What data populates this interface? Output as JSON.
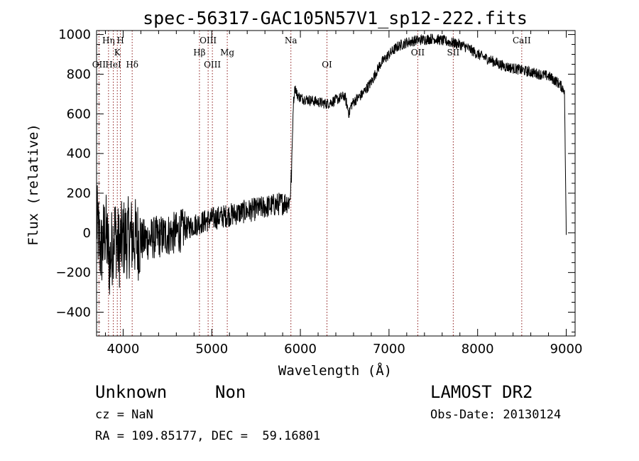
{
  "chart_data": {
    "type": "line",
    "title": "spec-56317-GAC105N57V1_sp12-222.fits",
    "xlabel": "Wavelength (Å)",
    "ylabel": "Flux (relative)",
    "xlim": [
      3700,
      9100
    ],
    "ylim": [
      -520,
      1020
    ],
    "xticks": [
      4000,
      5000,
      6000,
      7000,
      8000,
      9000
    ],
    "yticks": [
      -400,
      -200,
      0,
      200,
      400,
      600,
      800,
      1000
    ],
    "grid": false,
    "series": [
      {
        "x": [
          3700,
          3750,
          3800,
          3850,
          3900,
          3950,
          4000,
          4100,
          4200,
          4300,
          4400,
          4500,
          4600,
          4700,
          4800,
          4900,
          5000,
          5100,
          5200,
          5300,
          5400,
          5500,
          5600,
          5700,
          5800,
          5880,
          5900,
          5920,
          5940,
          5960,
          6000,
          6100,
          6200,
          6300,
          6400,
          6500,
          6550,
          6570,
          6600,
          6700,
          6800,
          6900,
          7000,
          7100,
          7200,
          7300,
          7400,
          7500,
          7600,
          7700,
          7800,
          7900,
          8000,
          8100,
          8200,
          8300,
          8400,
          8500,
          8600,
          8700,
          8800,
          8900,
          8980,
          9000
        ],
        "y": [
          60,
          -100,
          20,
          -150,
          10,
          -80,
          -30,
          -20,
          -40,
          -30,
          -20,
          -10,
          0,
          20,
          40,
          55,
          70,
          80,
          90,
          100,
          110,
          120,
          130,
          140,
          150,
          160,
          300,
          650,
          740,
          700,
          680,
          670,
          660,
          650,
          670,
          690,
          600,
          640,
          660,
          700,
          760,
          850,
          900,
          940,
          960,
          970,
          975,
          980,
          970,
          960,
          950,
          930,
          900,
          880,
          860,
          840,
          830,
          820,
          810,
          800,
          790,
          760,
          720,
          0
        ]
      }
    ],
    "lines": [
      {
        "name": "OII",
        "x": 3727,
        "row": 3
      },
      {
        "name": "Hη",
        "x": 3835,
        "row": 1
      },
      {
        "name": "HeI",
        "x": 3889,
        "row": 3
      },
      {
        "name": "K",
        "x": 3934,
        "row": 2
      },
      {
        "name": "H",
        "x": 3969,
        "row": 1
      },
      {
        "name": "Hδ",
        "x": 4102,
        "row": 3
      },
      {
        "name": "Hβ",
        "x": 4861,
        "row": 2
      },
      {
        "name": "OIII",
        "x": 4959,
        "row": 1
      },
      {
        "name": "OIII",
        "x": 5007,
        "row": 3
      },
      {
        "name": "Mg",
        "x": 5175,
        "row": 2
      },
      {
        "name": "Na",
        "x": 5893,
        "row": 1
      },
      {
        "name": "OI",
        "x": 6300,
        "row": 3
      },
      {
        "name": "OII",
        "x": 7325,
        "row": 2
      },
      {
        "name": "SII",
        "x": 7725,
        "row": 2
      },
      {
        "name": "CaII",
        "x": 8498,
        "row": 1
      }
    ]
  },
  "info": {
    "class": "Unknown",
    "subclass": "Non",
    "cz": "cz = NaN",
    "coords": "RA = 109.85177, DEC =  59.16801",
    "survey": "LAMOST DR2",
    "obs_date": "Obs-Date: 20130124"
  }
}
